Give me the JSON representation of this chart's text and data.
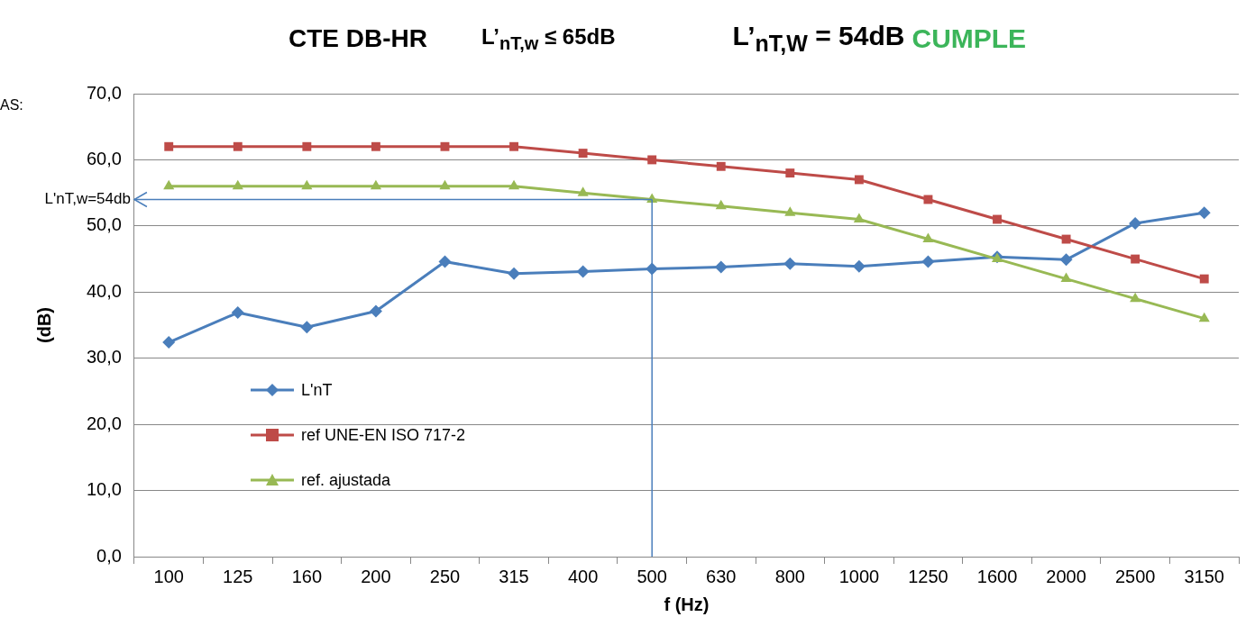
{
  "chart_data": {
    "type": "line",
    "title": "CTE DB-HR",
    "subtitle": "L’$_{nT,w}$ ≤ 65dB",
    "annotations": [
      "L’$_{nT,W}$ = 54dB",
      "CUMPLE",
      "AS:"
    ],
    "xlabel": "f (Hz)",
    "ylabel": "(dB)",
    "categories": [
      "100",
      "125",
      "160",
      "200",
      "250",
      "315",
      "400",
      "500",
      "630",
      "800",
      "1000",
      "1250",
      "1600",
      "2000",
      "2500",
      "3150"
    ],
    "series": [
      {
        "name": "L'nT",
        "color": "#4a7ebb",
        "marker": "diamond",
        "values": [
          32.4,
          36.9,
          34.7,
          37.1,
          44.6,
          42.8,
          43.1,
          43.5,
          43.8,
          44.3,
          43.9,
          44.6,
          45.3,
          44.9,
          50.4,
          52.0
        ]
      },
      {
        "name": "ref UNE-EN ISO 717-2",
        "color": "#be4b48",
        "marker": "square",
        "values": [
          62,
          62,
          62,
          62,
          62,
          62,
          61,
          60,
          59,
          58,
          57,
          54,
          51,
          48,
          45,
          42
        ]
      },
      {
        "name": "ref. ajustada",
        "color": "#98b954",
        "marker": "triangle",
        "values": [
          56,
          56,
          56,
          56,
          56,
          56,
          55,
          54,
          53,
          52,
          51,
          48,
          45,
          42,
          39,
          36
        ]
      }
    ],
    "ylim": [
      0,
      70
    ],
    "yticks": [
      {
        "value": 0,
        "label": "0,0"
      },
      {
        "value": 10,
        "label": "10,0"
      },
      {
        "value": 20,
        "label": "20,0"
      },
      {
        "value": 30,
        "label": "30,0"
      },
      {
        "value": 40,
        "label": "40,0"
      },
      {
        "value": 50,
        "label": "50,0"
      },
      {
        "value": 60,
        "label": "60,0"
      },
      {
        "value": 70,
        "label": "70,0"
      }
    ],
    "ref_lines": [
      {
        "axis": "y",
        "value": 54,
        "label": "L'nT,w=54db",
        "color": "#4a7ebb"
      },
      {
        "axis": "x",
        "value": "500",
        "color": "#4a7ebb"
      }
    ],
    "grid": "y",
    "legend": "bottom left",
    "line_style": "solid"
  }
}
